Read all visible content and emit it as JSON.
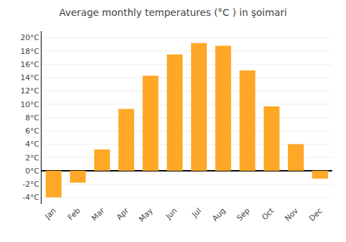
{
  "chart_data": {
    "type": "bar",
    "title": "Average monthly temperatures (°C ) in şoimari",
    "categories": [
      "Jan",
      "Feb",
      "Mar",
      "Apr",
      "May",
      "Jun",
      "Jul",
      "Aug",
      "Sep",
      "Oct",
      "Nov",
      "Dec"
    ],
    "values": [
      -4.0,
      -1.8,
      3.2,
      9.3,
      14.3,
      17.5,
      19.2,
      18.8,
      15.1,
      9.7,
      4.0,
      -1.2
    ],
    "color": "#FFA726",
    "ylim": [
      -5,
      21
    ],
    "yticks": [
      {
        "value": -4,
        "label": "-4°C"
      },
      {
        "value": -2,
        "label": "-2°C"
      },
      {
        "value": 0,
        "label": "0°C"
      },
      {
        "value": 2,
        "label": "2°C"
      },
      {
        "value": 4,
        "label": "4°C"
      },
      {
        "value": 6,
        "label": "6°C"
      },
      {
        "value": 8,
        "label": "8°C"
      },
      {
        "value": 10,
        "label": "10°C"
      },
      {
        "value": 12,
        "label": "12°C"
      },
      {
        "value": 14,
        "label": "14°C"
      },
      {
        "value": 16,
        "label": "16°C"
      },
      {
        "value": 18,
        "label": "18°C"
      },
      {
        "value": 20,
        "label": "20°C"
      }
    ],
    "grid": true
  }
}
